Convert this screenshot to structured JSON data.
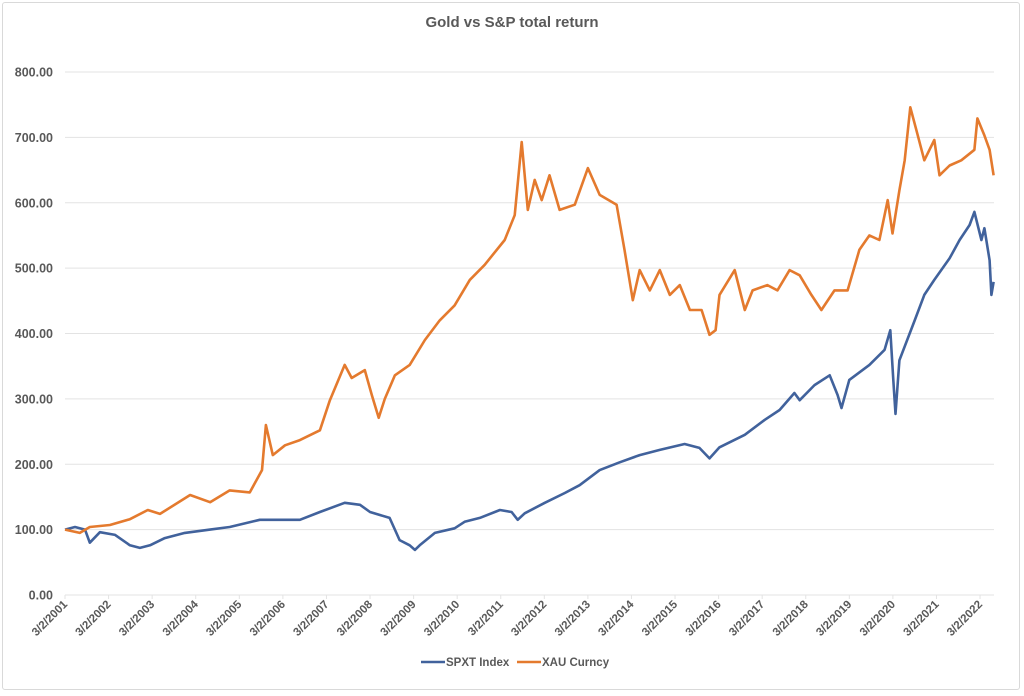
{
  "chart_data": {
    "type": "line",
    "title": "Gold vs S&P total return",
    "xlabel": "",
    "ylabel": "",
    "ylim": [
      0,
      800
    ],
    "xlim": [
      2001,
      2022.32
    ],
    "grid": true,
    "legend_position": "bottom",
    "yticks": [
      "0.00",
      "100.00",
      "200.00",
      "300.00",
      "400.00",
      "500.00",
      "600.00",
      "700.00",
      "800.00"
    ],
    "xticks": [
      "3/2/2001",
      "3/2/2002",
      "3/2/2003",
      "3/2/2004",
      "3/2/2005",
      "3/2/2006",
      "3/2/2007",
      "3/2/2008",
      "3/2/2009",
      "3/2/2010",
      "3/2/2011",
      "3/2/2012",
      "3/2/2013",
      "3/2/2014",
      "3/2/2015",
      "3/2/2016",
      "3/2/2017",
      "3/2/2018",
      "3/2/2019",
      "3/2/2020",
      "3/2/2021",
      "3/2/2022"
    ],
    "series": [
      {
        "name": "SPXT Index",
        "color": "#41629c",
        "x": [
          2001.0,
          2001.23,
          2001.46,
          2001.57,
          2001.8,
          2002.15,
          2002.49,
          2002.72,
          2002.95,
          2003.29,
          2003.75,
          2004.33,
          2004.78,
          2005.47,
          2006.05,
          2006.39,
          2006.85,
          2007.42,
          2007.77,
          2008.0,
          2008.45,
          2008.57,
          2008.68,
          2008.91,
          2009.03,
          2009.14,
          2009.49,
          2009.94,
          2010.17,
          2010.52,
          2010.98,
          2011.25,
          2011.39,
          2011.55,
          2012.01,
          2012.47,
          2012.81,
          2013.27,
          2013.73,
          2014.19,
          2014.65,
          2015.22,
          2015.56,
          2015.79,
          2016.02,
          2016.6,
          2017.06,
          2017.4,
          2017.74,
          2017.86,
          2018.2,
          2018.55,
          2018.73,
          2018.82,
          2019.0,
          2019.46,
          2019.81,
          2019.94,
          2020.01,
          2020.06,
          2020.15,
          2020.5,
          2020.72,
          2020.95,
          2021.3,
          2021.53,
          2021.76,
          2021.87,
          2022.03,
          2022.1,
          2022.22,
          2022.26,
          2022.31
        ],
        "values": [
          100,
          104,
          100,
          80,
          96,
          92,
          76,
          72,
          76,
          87,
          95,
          100,
          104,
          115,
          115,
          115,
          127,
          141,
          138,
          127,
          118,
          100,
          84,
          76,
          69,
          76,
          95,
          102,
          112,
          118,
          130,
          127,
          115,
          125,
          141,
          156,
          168,
          191,
          203,
          214,
          222,
          231,
          225,
          209,
          226,
          245,
          268,
          283,
          309,
          298,
          321,
          336,
          306,
          286,
          329,
          352,
          375,
          405,
          329,
          277,
          359,
          420,
          459,
          482,
          515,
          543,
          566,
          586,
          543,
          561,
          512,
          459,
          479
        ]
      },
      {
        "name": "XAU Curncy",
        "color": "#e47a2e",
        "x": [
          2001.0,
          2001.34,
          2001.57,
          2002.03,
          2002.49,
          2002.9,
          2003.18,
          2003.87,
          2004.33,
          2004.78,
          2005.24,
          2005.52,
          2005.61,
          2005.77,
          2006.05,
          2006.39,
          2006.85,
          2007.08,
          2007.42,
          2007.58,
          2007.88,
          2008.04,
          2008.2,
          2008.34,
          2008.57,
          2008.91,
          2009.26,
          2009.6,
          2009.94,
          2010.29,
          2010.63,
          2011.09,
          2011.32,
          2011.48,
          2011.62,
          2011.78,
          2011.94,
          2012.12,
          2012.35,
          2012.7,
          2013.0,
          2013.27,
          2013.66,
          2013.84,
          2014.03,
          2014.19,
          2014.42,
          2014.65,
          2014.88,
          2015.11,
          2015.34,
          2015.61,
          2015.79,
          2015.93,
          2016.02,
          2016.37,
          2016.6,
          2016.78,
          2017.12,
          2017.35,
          2017.63,
          2017.86,
          2018.13,
          2018.36,
          2018.66,
          2018.96,
          2019.23,
          2019.46,
          2019.69,
          2019.88,
          2019.99,
          2020.15,
          2020.27,
          2020.4,
          2020.54,
          2020.72,
          2020.95,
          2021.07,
          2021.3,
          2021.57,
          2021.87,
          2021.94,
          2022.1,
          2022.22,
          2022.31
        ],
        "values": [
          100,
          95,
          104,
          107,
          116,
          130,
          124,
          153,
          142,
          160,
          157,
          191,
          260,
          214,
          229,
          237,
          252,
          298,
          352,
          332,
          344,
          306,
          271,
          300,
          336,
          352,
          390,
          420,
          443,
          482,
          505,
          543,
          581,
          693,
          589,
          635,
          604,
          642,
          589,
          597,
          653,
          612,
          597,
          528,
          451,
          497,
          466,
          497,
          459,
          474,
          436,
          436,
          398,
          405,
          459,
          497,
          436,
          466,
          474,
          466,
          497,
          489,
          459,
          436,
          466,
          466,
          528,
          550,
          543,
          604,
          553,
          619,
          665,
          746,
          711,
          665,
          696,
          642,
          657,
          665,
          681,
          729,
          703,
          681,
          642
        ]
      }
    ]
  }
}
